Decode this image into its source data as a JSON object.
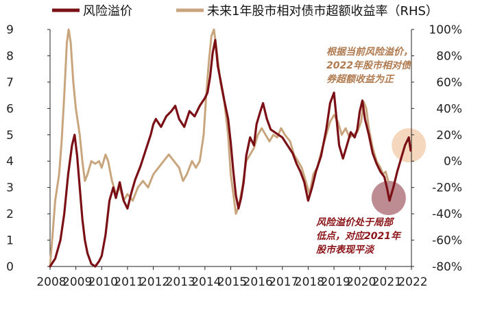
{
  "chart_data": {
    "type": "line",
    "legend": {
      "placement": "top",
      "entries": [
        {
          "label": "风险溢价",
          "color": "#7a1016"
        },
        {
          "label": "未来1年股市相对债市超额收益率（RHS）",
          "color": "#c9a57d"
        }
      ]
    },
    "x_ticks": [
      "2008",
      "2009",
      "2010",
      "2011",
      "2012",
      "2013",
      "2014",
      "2015",
      "2016",
      "2017",
      "2018",
      "2019",
      "2020",
      "2021",
      "2022"
    ],
    "y_left": {
      "range": [
        0,
        9
      ],
      "ticks": [
        "0",
        "1",
        "2",
        "3",
        "4",
        "5",
        "6",
        "7",
        "8",
        "9"
      ]
    },
    "y_right": {
      "range": [
        -80,
        100
      ],
      "ticks": [
        "-80%",
        "-60%",
        "-40%",
        "-20%",
        "0%",
        "20%",
        "40%",
        "60%",
        "80%",
        "100%"
      ]
    },
    "series": [
      {
        "name": "风险溢价",
        "axis": "left",
        "color": "#7a1016",
        "points": [
          [
            2008.0,
            0.0
          ],
          [
            2008.2,
            0.3
          ],
          [
            2008.4,
            1.0
          ],
          [
            2008.55,
            2.0
          ],
          [
            2008.7,
            3.5
          ],
          [
            2008.85,
            4.6
          ],
          [
            2008.95,
            5.0
          ],
          [
            2009.05,
            4.2
          ],
          [
            2009.15,
            3.0
          ],
          [
            2009.25,
            1.8
          ],
          [
            2009.35,
            1.0
          ],
          [
            2009.45,
            0.5
          ],
          [
            2009.6,
            0.1
          ],
          [
            2009.75,
            0.0
          ],
          [
            2009.9,
            0.2
          ],
          [
            2010.0,
            0.4
          ],
          [
            2010.15,
            1.2
          ],
          [
            2010.3,
            2.5
          ],
          [
            2010.45,
            3.0
          ],
          [
            2010.55,
            2.6
          ],
          [
            2010.7,
            3.2
          ],
          [
            2010.85,
            2.5
          ],
          [
            2011.0,
            2.2
          ],
          [
            2011.15,
            2.8
          ],
          [
            2011.3,
            3.3
          ],
          [
            2011.5,
            3.8
          ],
          [
            2011.7,
            4.4
          ],
          [
            2011.9,
            5.0
          ],
          [
            2012.0,
            5.4
          ],
          [
            2012.1,
            5.6
          ],
          [
            2012.3,
            5.3
          ],
          [
            2012.5,
            5.7
          ],
          [
            2012.7,
            5.9
          ],
          [
            2012.85,
            6.1
          ],
          [
            2013.0,
            5.6
          ],
          [
            2013.2,
            5.3
          ],
          [
            2013.4,
            5.9
          ],
          [
            2013.6,
            5.7
          ],
          [
            2013.8,
            6.1
          ],
          [
            2014.0,
            6.4
          ],
          [
            2014.1,
            6.6
          ],
          [
            2014.2,
            7.2
          ],
          [
            2014.3,
            8.1
          ],
          [
            2014.4,
            8.6
          ],
          [
            2014.5,
            7.6
          ],
          [
            2014.6,
            7.1
          ],
          [
            2014.75,
            6.3
          ],
          [
            2014.9,
            5.6
          ],
          [
            2015.0,
            4.7
          ],
          [
            2015.1,
            3.6
          ],
          [
            2015.2,
            2.7
          ],
          [
            2015.3,
            2.2
          ],
          [
            2015.4,
            2.6
          ],
          [
            2015.5,
            3.2
          ],
          [
            2015.6,
            4.2
          ],
          [
            2015.75,
            4.9
          ],
          [
            2015.9,
            4.6
          ],
          [
            2016.0,
            5.4
          ],
          [
            2016.15,
            5.9
          ],
          [
            2016.25,
            6.2
          ],
          [
            2016.4,
            5.6
          ],
          [
            2016.55,
            5.2
          ],
          [
            2016.7,
            5.1
          ],
          [
            2016.85,
            5.0
          ],
          [
            2017.0,
            4.9
          ],
          [
            2017.2,
            4.6
          ],
          [
            2017.4,
            4.3
          ],
          [
            2017.55,
            3.9
          ],
          [
            2017.7,
            3.6
          ],
          [
            2017.85,
            3.2
          ],
          [
            2018.0,
            2.5
          ],
          [
            2018.15,
            3.0
          ],
          [
            2018.3,
            3.6
          ],
          [
            2018.5,
            4.2
          ],
          [
            2018.7,
            5.2
          ],
          [
            2018.85,
            6.2
          ],
          [
            2019.0,
            6.6
          ],
          [
            2019.1,
            5.6
          ],
          [
            2019.2,
            4.6
          ],
          [
            2019.35,
            4.1
          ],
          [
            2019.5,
            4.6
          ],
          [
            2019.65,
            5.1
          ],
          [
            2019.8,
            4.9
          ],
          [
            2019.9,
            5.2
          ],
          [
            2020.0,
            5.9
          ],
          [
            2020.1,
            6.3
          ],
          [
            2020.2,
            5.6
          ],
          [
            2020.35,
            5.0
          ],
          [
            2020.5,
            4.3
          ],
          [
            2020.65,
            3.9
          ],
          [
            2020.8,
            3.6
          ],
          [
            2020.95,
            3.4
          ],
          [
            2021.05,
            3.0
          ],
          [
            2021.15,
            2.5
          ],
          [
            2021.3,
            3.0
          ],
          [
            2021.45,
            3.6
          ],
          [
            2021.6,
            4.1
          ],
          [
            2021.75,
            4.6
          ],
          [
            2021.9,
            4.9
          ],
          [
            2021.97,
            4.4
          ]
        ]
      },
      {
        "name": "未来1年股市相对债市超额收益率（RHS）",
        "axis": "right",
        "color": "#c9a57d",
        "points": [
          [
            2008.0,
            -80
          ],
          [
            2008.1,
            -55
          ],
          [
            2008.2,
            -30
          ],
          [
            2008.35,
            -10
          ],
          [
            2008.45,
            15
          ],
          [
            2008.55,
            50
          ],
          [
            2008.65,
            90
          ],
          [
            2008.72,
            100
          ],
          [
            2008.8,
            90
          ],
          [
            2008.9,
            60
          ],
          [
            2009.0,
            40
          ],
          [
            2009.15,
            20
          ],
          [
            2009.25,
            0
          ],
          [
            2009.35,
            -15
          ],
          [
            2009.45,
            -10
          ],
          [
            2009.6,
            0
          ],
          [
            2009.75,
            -2
          ],
          [
            2009.9,
            0
          ],
          [
            2010.0,
            -5
          ],
          [
            2010.15,
            5
          ],
          [
            2010.25,
            0
          ],
          [
            2010.4,
            -15
          ],
          [
            2010.55,
            -25
          ],
          [
            2010.7,
            -20
          ],
          [
            2010.85,
            -30
          ],
          [
            2011.0,
            -25
          ],
          [
            2011.2,
            -30
          ],
          [
            2011.4,
            -20
          ],
          [
            2011.6,
            -15
          ],
          [
            2011.8,
            -20
          ],
          [
            2012.0,
            -10
          ],
          [
            2012.2,
            -5
          ],
          [
            2012.4,
            0
          ],
          [
            2012.6,
            5
          ],
          [
            2012.8,
            0
          ],
          [
            2013.0,
            -5
          ],
          [
            2013.15,
            -15
          ],
          [
            2013.3,
            -10
          ],
          [
            2013.5,
            0
          ],
          [
            2013.65,
            -5
          ],
          [
            2013.8,
            0
          ],
          [
            2013.95,
            20
          ],
          [
            2014.05,
            50
          ],
          [
            2014.15,
            75
          ],
          [
            2014.25,
            95
          ],
          [
            2014.35,
            100
          ],
          [
            2014.45,
            85
          ],
          [
            2014.6,
            60
          ],
          [
            2014.75,
            45
          ],
          [
            2014.9,
            20
          ],
          [
            2015.0,
            -10
          ],
          [
            2015.1,
            -25
          ],
          [
            2015.2,
            -40
          ],
          [
            2015.3,
            -35
          ],
          [
            2015.45,
            -20
          ],
          [
            2015.6,
            0
          ],
          [
            2015.75,
            5
          ],
          [
            2015.9,
            10
          ],
          [
            2016.05,
            20
          ],
          [
            2016.2,
            25
          ],
          [
            2016.35,
            20
          ],
          [
            2016.5,
            15
          ],
          [
            2016.65,
            20
          ],
          [
            2016.8,
            18
          ],
          [
            2016.95,
            25
          ],
          [
            2017.1,
            20
          ],
          [
            2017.3,
            15
          ],
          [
            2017.45,
            5
          ],
          [
            2017.6,
            0
          ],
          [
            2017.75,
            -5
          ],
          [
            2017.9,
            -15
          ],
          [
            2018.05,
            -25
          ],
          [
            2018.2,
            -10
          ],
          [
            2018.35,
            -5
          ],
          [
            2018.55,
            10
          ],
          [
            2018.7,
            20
          ],
          [
            2018.85,
            30
          ],
          [
            2019.0,
            35
          ],
          [
            2019.15,
            30
          ],
          [
            2019.3,
            20
          ],
          [
            2019.45,
            25
          ],
          [
            2019.6,
            18
          ],
          [
            2019.75,
            20
          ],
          [
            2019.9,
            22
          ],
          [
            2020.05,
            30
          ],
          [
            2020.15,
            45
          ],
          [
            2020.25,
            40
          ],
          [
            2020.35,
            25
          ],
          [
            2020.5,
            10
          ],
          [
            2020.65,
            0
          ],
          [
            2020.8,
            -5
          ],
          [
            2020.9,
            -10
          ],
          [
            2021.0,
            -8
          ],
          [
            2021.1,
            -15
          ]
        ]
      }
    ],
    "annotations": [
      {
        "lines": [
          "根据当前风险溢价，",
          "2022年股市相对债",
          "券超额收益为正"
        ],
        "color": "#b07a4f"
      },
      {
        "lines": [
          "风险溢价处于局部",
          "低点，对应2021年",
          "股市表现平淡"
        ],
        "color": "#8b1418"
      }
    ],
    "highlights": [
      {
        "x": 2021.9,
        "y": 4.6,
        "axis": "left",
        "color": "#f1c9a8"
      },
      {
        "x": 2021.12,
        "y": 2.6,
        "axis": "left",
        "color": "#a5666d"
      }
    ]
  }
}
